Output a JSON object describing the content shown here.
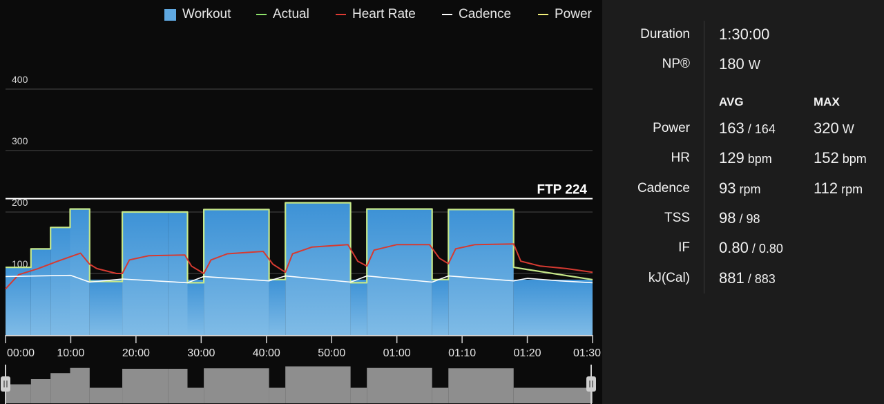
{
  "legend": [
    {
      "label": "Workout",
      "type": "box",
      "color": "#5fa8e0"
    },
    {
      "label": "Actual",
      "type": "line",
      "color": "#8ee36a"
    },
    {
      "label": "Heart Rate",
      "type": "line",
      "color": "#e03b33"
    },
    {
      "label": "Cadence",
      "type": "line",
      "color": "#ffffff"
    },
    {
      "label": "Power",
      "type": "line",
      "color": "#f3f07a"
    }
  ],
  "ftp_label": "FTP 224",
  "stats": {
    "duration_label": "Duration",
    "duration_value": "1:30:00",
    "np_label": "NP®",
    "np_value": "180",
    "np_unit": "W",
    "avg_header": "AVG",
    "max_header": "MAX",
    "rows": [
      {
        "label": "Power",
        "avg": "163",
        "avg_unit": "/ 164",
        "max": "320",
        "max_unit": "W"
      },
      {
        "label": "HR",
        "avg": "129",
        "avg_unit": "bpm",
        "max": "152",
        "max_unit": "bpm"
      },
      {
        "label": "Cadence",
        "avg": "93",
        "avg_unit": "rpm",
        "max": "112",
        "max_unit": "rpm"
      },
      {
        "label": "TSS",
        "avg": "98",
        "avg_unit": "/ 98",
        "max": "",
        "max_unit": ""
      },
      {
        "label": "IF",
        "avg": "0.80",
        "avg_unit": "/ 0.80",
        "max": "",
        "max_unit": ""
      },
      {
        "label": "kJ(Cal)",
        "avg": "881",
        "avg_unit": "/ 883",
        "max": "",
        "max_unit": ""
      }
    ]
  },
  "chart_data": {
    "type": "area",
    "ftp": 224,
    "ylim": [
      0,
      450
    ],
    "yticks": [
      100,
      200,
      300,
      400
    ],
    "xticks": [
      "00:00",
      "10:00",
      "20:00",
      "30:00",
      "40:00",
      "50:00",
      "01:00",
      "01:10",
      "01:20",
      "01:30"
    ],
    "xlim_minutes": [
      0,
      90
    ],
    "workout_segments": [
      {
        "start": 0,
        "end": 3.9,
        "watts": 110
      },
      {
        "start": 3.9,
        "end": 6.9,
        "watts": 140
      },
      {
        "start": 6.9,
        "end": 9.9,
        "watts": 175
      },
      {
        "start": 9.9,
        "end": 12.9,
        "watts": 205
      },
      {
        "start": 12.9,
        "end": 17.9,
        "watts": 90
      },
      {
        "start": 17.9,
        "end": 24.9,
        "watts": 200
      },
      {
        "start": 24.9,
        "end": 27.9,
        "watts": 200
      },
      {
        "start": 27.9,
        "end": 30.4,
        "watts": 90
      },
      {
        "start": 30.4,
        "end": 40.4,
        "watts": 203
      },
      {
        "start": 40.4,
        "end": 42.9,
        "watts": 90
      },
      {
        "start": 42.9,
        "end": 52.9,
        "watts": 214
      },
      {
        "start": 52.9,
        "end": 55.4,
        "watts": 90
      },
      {
        "start": 55.4,
        "end": 65.4,
        "watts": 205
      },
      {
        "start": 65.4,
        "end": 67.9,
        "watts": 90
      },
      {
        "start": 67.9,
        "end": 77.9,
        "watts": 203
      },
      {
        "start": 77.9,
        "end": 90,
        "watts": 90
      }
    ],
    "power": [
      [
        0,
        110
      ],
      [
        3.9,
        110
      ],
      [
        3.9,
        140
      ],
      [
        6.9,
        140
      ],
      [
        6.9,
        175
      ],
      [
        9.9,
        175
      ],
      [
        9.9,
        205
      ],
      [
        12.9,
        205
      ],
      [
        12.9,
        87
      ],
      [
        17.9,
        87
      ],
      [
        17.9,
        200
      ],
      [
        27.9,
        200
      ],
      [
        27.9,
        85
      ],
      [
        30.4,
        85
      ],
      [
        30.4,
        204
      ],
      [
        40.4,
        204
      ],
      [
        40.4,
        90
      ],
      [
        42.9,
        90
      ],
      [
        42.9,
        215
      ],
      [
        52.9,
        215
      ],
      [
        52.9,
        85
      ],
      [
        55.4,
        85
      ],
      [
        55.4,
        205
      ],
      [
        65.4,
        205
      ],
      [
        65.4,
        90
      ],
      [
        67.9,
        90
      ],
      [
        67.9,
        204
      ],
      [
        77.9,
        204
      ],
      [
        77.9,
        110
      ],
      [
        90,
        90
      ]
    ],
    "heart_rate": [
      [
        0,
        75
      ],
      [
        2,
        98
      ],
      [
        5,
        108
      ],
      [
        8,
        120
      ],
      [
        11.5,
        133
      ],
      [
        12.9,
        115
      ],
      [
        14,
        108
      ],
      [
        17,
        100
      ],
      [
        17.9,
        100
      ],
      [
        19,
        122
      ],
      [
        22,
        129
      ],
      [
        27.5,
        130
      ],
      [
        28.5,
        112
      ],
      [
        30.4,
        100
      ],
      [
        31.5,
        122
      ],
      [
        34,
        132
      ],
      [
        39.5,
        136
      ],
      [
        41,
        115
      ],
      [
        42.9,
        102
      ],
      [
        44,
        132
      ],
      [
        47,
        143
      ],
      [
        52.5,
        147
      ],
      [
        54,
        120
      ],
      [
        55.4,
        112
      ],
      [
        56.5,
        138
      ],
      [
        60,
        147
      ],
      [
        65,
        147
      ],
      [
        66.5,
        125
      ],
      [
        67.9,
        116
      ],
      [
        69,
        140
      ],
      [
        72,
        147
      ],
      [
        77.9,
        148
      ],
      [
        79,
        120
      ],
      [
        82,
        112
      ],
      [
        86,
        108
      ],
      [
        90,
        102
      ]
    ],
    "cadence": [
      [
        0,
        95
      ],
      [
        10,
        97
      ],
      [
        12.9,
        86
      ],
      [
        17.9,
        91
      ],
      [
        27.9,
        85
      ],
      [
        30.4,
        95
      ],
      [
        40.4,
        88
      ],
      [
        42.9,
        96
      ],
      [
        52.9,
        86
      ],
      [
        55.4,
        96
      ],
      [
        65.4,
        86
      ],
      [
        67.9,
        96
      ],
      [
        77.9,
        88
      ],
      [
        80,
        92
      ],
      [
        85,
        88
      ],
      [
        90,
        85
      ]
    ]
  }
}
